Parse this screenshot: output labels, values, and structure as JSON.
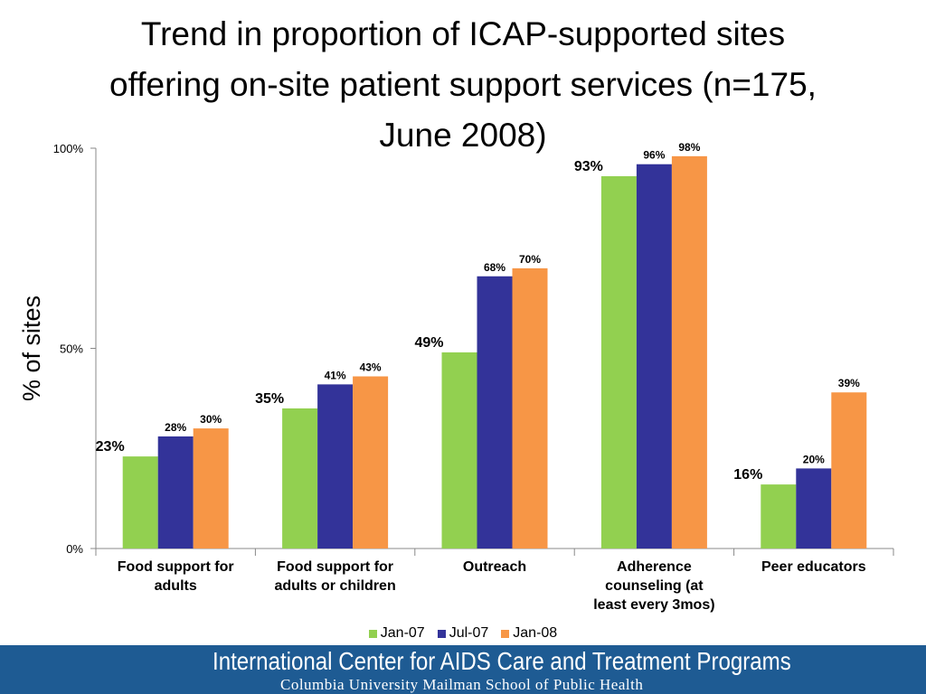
{
  "title_lines": [
    "Trend in proportion of ICAP-supported sites",
    "offering on-site patient support services (n=175,",
    "June 2008)"
  ],
  "footer": {
    "org": "International Center for AIDS Care and Treatment Programs",
    "school": "Columbia University Mailman School of Public Health",
    "background": "#1e5b93"
  },
  "chart_data": {
    "type": "bar",
    "ylabel": "% of sites",
    "xlabel": "",
    "ylim": [
      0,
      100
    ],
    "yticks": [
      0,
      50,
      100
    ],
    "ytick_labels": [
      "0%",
      "50%",
      "100%"
    ],
    "categories": [
      [
        "Food support for",
        "adults"
      ],
      [
        "Food support for",
        "adults or children"
      ],
      [
        "Outreach"
      ],
      [
        "Adherence",
        "counseling (at",
        "least every 3mos)"
      ],
      [
        "Peer educators"
      ]
    ],
    "series": [
      {
        "name": "Jan-07",
        "color": "#92d050",
        "values": [
          23,
          35,
          49,
          93,
          16
        ],
        "labels": [
          "23%",
          "35%",
          "49%",
          "93%",
          "16%"
        ]
      },
      {
        "name": "Jul-07",
        "color": "#333399",
        "values": [
          28,
          41,
          68,
          96,
          20
        ],
        "labels": [
          "28%",
          "41%",
          "68%",
          "96%",
          "20%"
        ]
      },
      {
        "name": "Jan-08",
        "color": "#f79646",
        "values": [
          30,
          43,
          70,
          98,
          39
        ],
        "labels": [
          "30%",
          "43%",
          "70%",
          "98%",
          "39%"
        ]
      }
    ],
    "legend_position": "bottom",
    "grid": false
  }
}
